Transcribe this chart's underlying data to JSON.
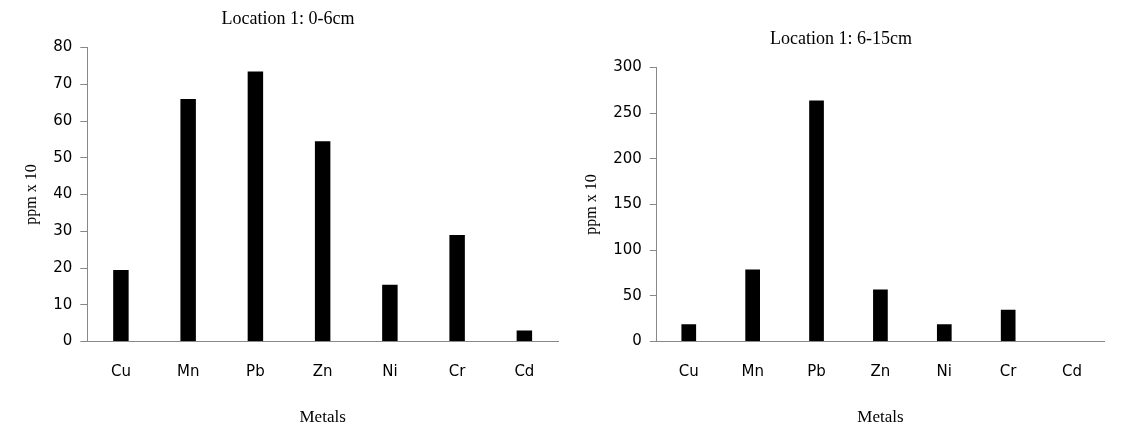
{
  "chart_data": [
    {
      "type": "bar",
      "title": "Location 1: 0-6cm",
      "xlabel": "Metals",
      "ylabel": "ppm x 10",
      "categories": [
        "Cu",
        "Mn",
        "Pb",
        "Zn",
        "Ni",
        "Cr",
        "Cd"
      ],
      "values": [
        19.5,
        66,
        73.5,
        54.5,
        15.5,
        29,
        3
      ],
      "color": "#000000",
      "ylim": [
        0,
        80
      ],
      "yticks": [
        0,
        10,
        20,
        30,
        40,
        50,
        60,
        70,
        80
      ],
      "legend": false
    },
    {
      "type": "bar",
      "title": "Location 1: 6-15cm",
      "xlabel": "Metals",
      "ylabel": "ppm x 10",
      "categories": [
        "Cu",
        "Mn",
        "Pb",
        "Zn",
        "Ni",
        "Cr",
        "Cd"
      ],
      "values": [
        19,
        79,
        264,
        57,
        19,
        35,
        0
      ],
      "color": "#000000",
      "ylim": [
        0,
        300
      ],
      "yticks": [
        0,
        50,
        100,
        150,
        200,
        250,
        300
      ],
      "legend": false
    }
  ]
}
